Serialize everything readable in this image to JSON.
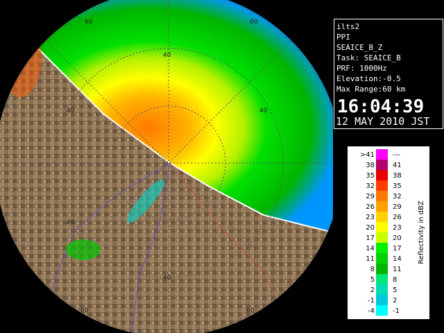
{
  "info": {
    "lines": [
      "ilts2",
      "PPI",
      "SEAICE_B_Z",
      "Task: SEAICE_B",
      "PRF: 1000Hz",
      "Elevation:-0.5",
      "Max Range:60 km"
    ],
    "time": "16:04:39",
    "date": "12 MAY 2010 JST"
  },
  "rings": {
    "labels": [
      {
        "text": "60"
      },
      {
        "text": "60"
      },
      {
        "text": "60"
      },
      {
        "text": "60"
      },
      {
        "text": "40"
      },
      {
        "text": "40"
      },
      {
        "text": "40"
      },
      {
        "text": "40"
      },
      {
        "text": "40"
      }
    ]
  },
  "legend": {
    "title": "Reflectivity in dBZ",
    "rows": [
      {
        "low": ">41",
        "high": "---",
        "color": "#ff00ff"
      },
      {
        "low": "38",
        "high": "41",
        "color": "#b4006e"
      },
      {
        "low": "35",
        "high": "38",
        "color": "#e60000"
      },
      {
        "low": "32",
        "high": "35",
        "color": "#ff3c00"
      },
      {
        "low": "29",
        "high": "32",
        "color": "#ff7800"
      },
      {
        "low": "26",
        "high": "29",
        "color": "#ffa000"
      },
      {
        "low": "23",
        "high": "26",
        "color": "#ffd200"
      },
      {
        "low": "20",
        "high": "23",
        "color": "#ffff00"
      },
      {
        "low": "17",
        "high": "20",
        "color": "#c8ff00"
      },
      {
        "low": "14",
        "high": "17",
        "color": "#00f000"
      },
      {
        "low": "11",
        "high": "14",
        "color": "#00d200"
      },
      {
        "low": "8",
        "high": "11",
        "color": "#00b400"
      },
      {
        "low": "5",
        "high": "8",
        "color": "#00e678"
      },
      {
        "low": "2",
        "high": "5",
        "color": "#00dcb4"
      },
      {
        "low": "-1",
        "high": "2",
        "color": "#00c8dc"
      },
      {
        "low": "-4",
        "high": "-1",
        "color": "#00ffff"
      }
    ]
  }
}
